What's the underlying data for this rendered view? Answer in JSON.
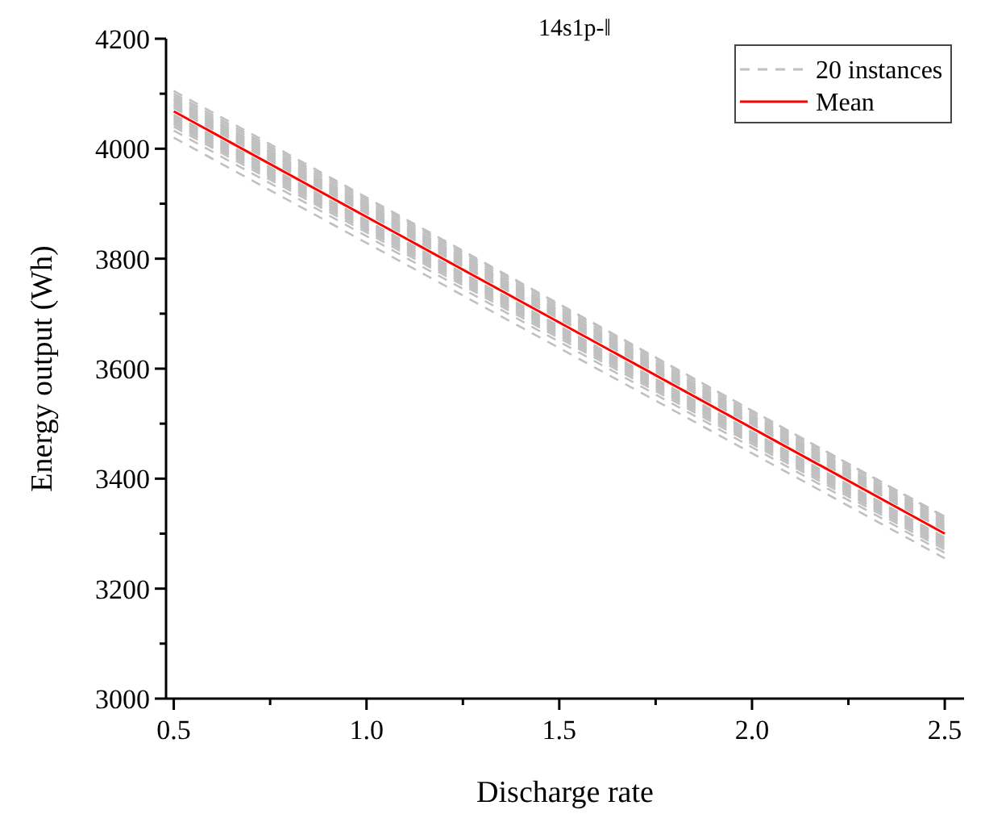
{
  "chart_data": {
    "type": "line",
    "title": "14s1p-‖",
    "xlabel": "Discharge rate",
    "ylabel": "Energy output (Wh)",
    "x": [
      0.5,
      2.5
    ],
    "xlim": [
      0.48,
      2.55
    ],
    "xticks": [
      0.5,
      {
        "value": 0.75,
        "label": null
      },
      {
        "value": 1,
        "label": "1.0"
      },
      {
        "value": 1.25,
        "label": null
      },
      1.5,
      {
        "value": 1.75,
        "label": null
      },
      {
        "value": 2,
        "label": "2.0"
      },
      {
        "value": 2.25,
        "label": null
      },
      2.5
    ],
    "ylim": [
      3000,
      4200
    ],
    "yticks": [
      3000,
      {
        "value": 3100,
        "label": null
      },
      3200,
      {
        "value": 3300,
        "label": null
      },
      3400,
      {
        "value": 3500,
        "label": null
      },
      3600,
      {
        "value": 3700,
        "label": null
      },
      3800,
      {
        "value": 3900,
        "label": null
      },
      4000,
      {
        "value": 4100,
        "label": null
      },
      4200
    ],
    "grid": false,
    "legend": "top right",
    "marker": "none",
    "series": [
      {
        "name": "20 instances",
        "color": "#c0c0c0",
        "line_style": "dashed",
        "values": [
          4105,
          3330
        ]
      },
      {
        "color": "#c0c0c0",
        "line_style": "dashed",
        "values": [
          4100,
          3331
        ]
      },
      {
        "color": "#c0c0c0",
        "line_style": "dashed",
        "values": [
          4096,
          3327
        ]
      },
      {
        "color": "#c0c0c0",
        "line_style": "dashed",
        "values": [
          4092,
          3323
        ]
      },
      {
        "color": "#c0c0c0",
        "line_style": "dashed",
        "values": [
          4089,
          3320
        ]
      },
      {
        "color": "#c0c0c0",
        "line_style": "dashed",
        "values": [
          4086,
          3317
        ]
      },
      {
        "color": "#c0c0c0",
        "line_style": "dashed",
        "values": [
          4083,
          3314
        ]
      },
      {
        "color": "#c0c0c0",
        "line_style": "dashed",
        "values": [
          4080,
          3311
        ]
      },
      {
        "color": "#c0c0c0",
        "line_style": "dashed",
        "values": [
          4077,
          3308
        ]
      },
      {
        "color": "#c0c0c0",
        "line_style": "dashed",
        "values": [
          4074,
          3306
        ]
      },
      {
        "color": "#c0c0c0",
        "line_style": "dashed",
        "values": [
          4062,
          3293
        ]
      },
      {
        "color": "#c0c0c0",
        "line_style": "dashed",
        "values": [
          4059,
          3290
        ]
      },
      {
        "color": "#c0c0c0",
        "line_style": "dashed",
        "values": [
          4056,
          3287
        ]
      },
      {
        "color": "#c0c0c0",
        "line_style": "dashed",
        "values": [
          4053,
          3284
        ]
      },
      {
        "color": "#c0c0c0",
        "line_style": "dashed",
        "values": [
          4050,
          3281
        ]
      },
      {
        "color": "#c0c0c0",
        "line_style": "dashed",
        "values": [
          4047,
          3278
        ]
      },
      {
        "color": "#c0c0c0",
        "line_style": "dashed",
        "values": [
          4044,
          3275
        ]
      },
      {
        "color": "#c0c0c0",
        "line_style": "dashed",
        "values": [
          4040,
          3271
        ]
      },
      {
        "color": "#c0c0c0",
        "line_style": "dashed",
        "values": [
          4033,
          3265
        ]
      },
      {
        "color": "#c0c0c0",
        "line_style": "dashed",
        "values": [
          4020,
          3255
        ]
      },
      {
        "name": "Mean",
        "color": "#ff0000",
        "line_style": "solid",
        "values": [
          4068,
          3300
        ]
      }
    ]
  }
}
